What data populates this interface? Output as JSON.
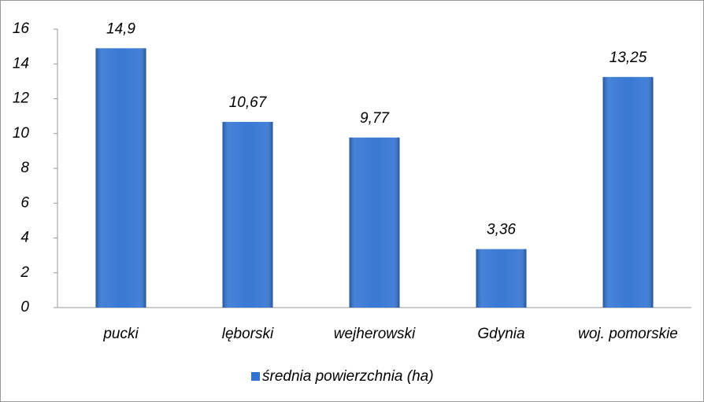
{
  "chart_data": {
    "type": "bar",
    "categories": [
      "pucki",
      "lęborski",
      "wejherowski",
      "Gdynia",
      "woj. pomorskie"
    ],
    "series": [
      {
        "name": "średnia powierzchnia (ha)",
        "color": "#2f72d2",
        "values": [
          14.9,
          10.67,
          9.77,
          3.36,
          13.25
        ],
        "value_labels": [
          "14,9",
          "10,67",
          "9,77",
          "3,36",
          "13,25"
        ]
      }
    ],
    "ylim": [
      0,
      16
    ],
    "yticks": [
      0,
      2,
      4,
      6,
      8,
      10,
      12,
      14,
      16
    ],
    "grid": false,
    "legend": "bottom"
  }
}
